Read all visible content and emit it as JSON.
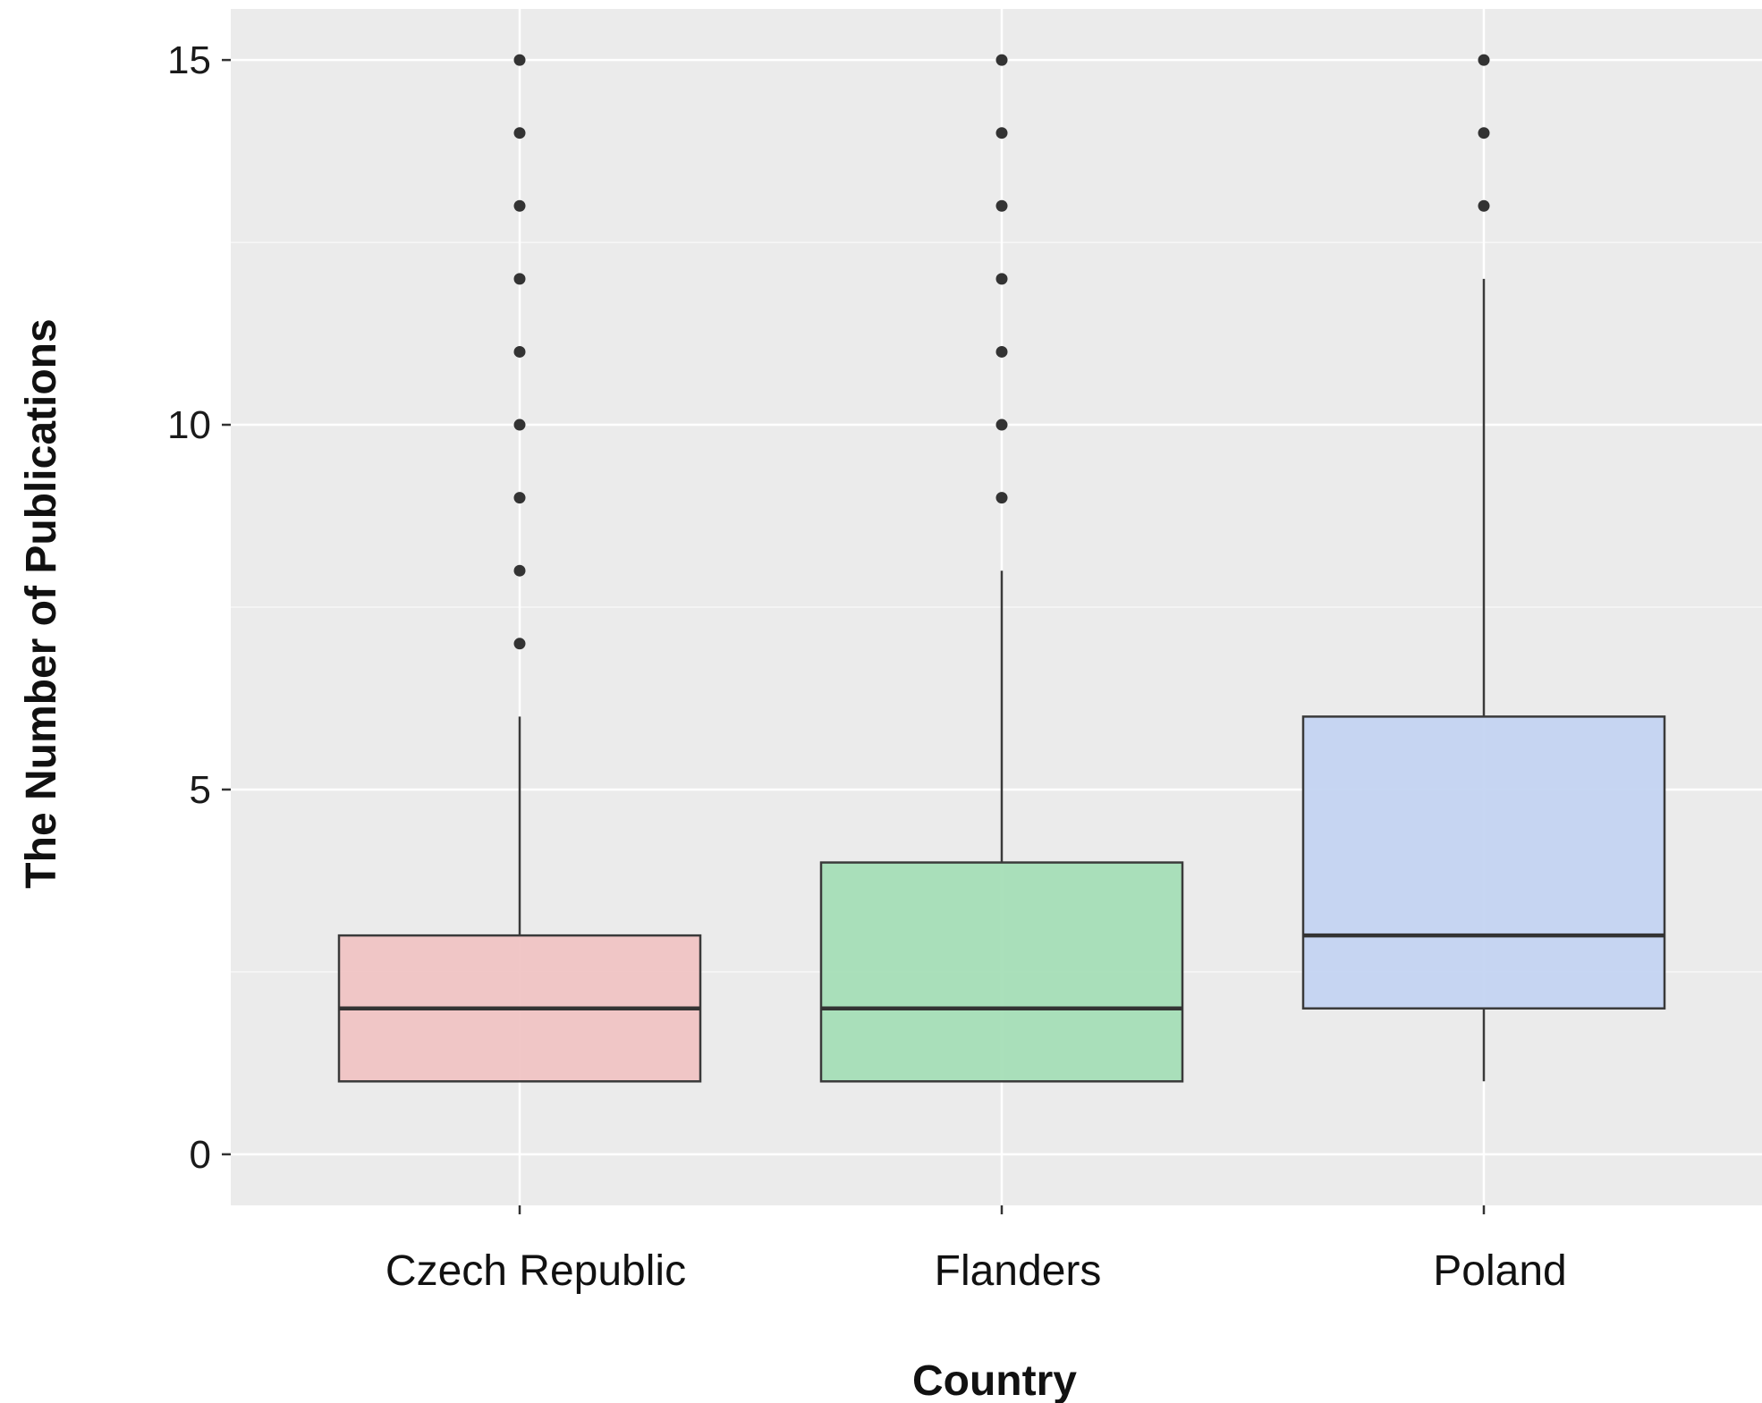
{
  "chart_data": {
    "type": "boxplot",
    "title": "",
    "xlabel": "Country",
    "ylabel": "The Number of Publications",
    "ylim": [
      -0.7,
      15.7
    ],
    "yticks": [
      0,
      5,
      10,
      15
    ],
    "ytick_labels": [
      "0",
      "5",
      "10",
      "15"
    ],
    "grid": true,
    "background": "#ebebeb",
    "categories": [
      "Czech Republic",
      "Flanders",
      "Poland"
    ],
    "boxes": [
      {
        "category": "Czech Republic",
        "whisker_low": 1,
        "q1": 1,
        "median": 2,
        "q3": 3,
        "whisker_high": 6,
        "outliers": [
          7,
          8,
          9,
          10,
          11,
          12,
          13,
          14,
          15
        ],
        "color": "#f0c2c2"
      },
      {
        "category": "Flanders",
        "whisker_low": 1,
        "q1": 1,
        "median": 2,
        "q3": 4,
        "whisker_high": 8,
        "outliers": [
          9,
          10,
          11,
          12,
          13,
          14,
          15
        ],
        "color": "#a3ddb5"
      },
      {
        "category": "Poland",
        "whisker_low": 1,
        "q1": 2,
        "median": 3,
        "q3": 6,
        "whisker_high": 12,
        "outliers": [
          13,
          14,
          15
        ],
        "color": "#c2d3f2"
      }
    ]
  }
}
